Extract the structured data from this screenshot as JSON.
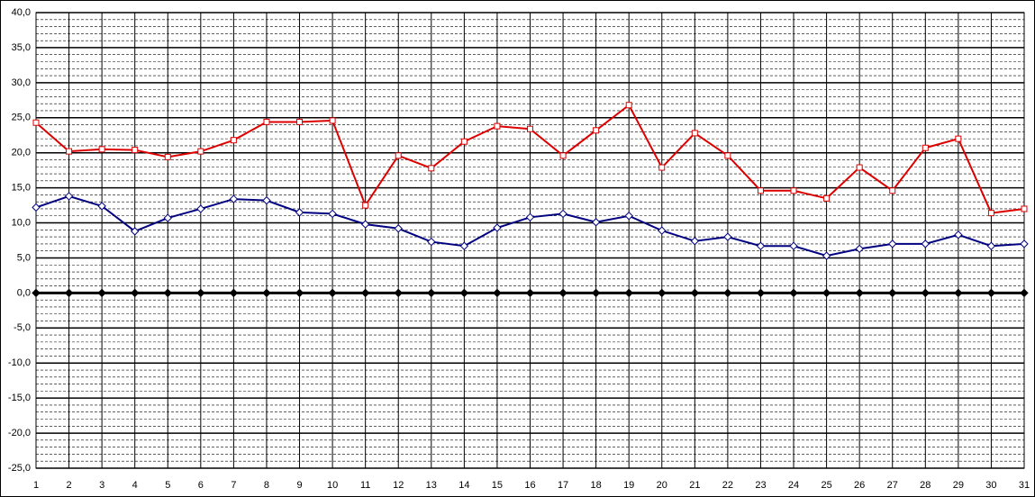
{
  "chart_data": {
    "type": "line",
    "categories": [
      "1",
      "2",
      "3",
      "4",
      "5",
      "6",
      "7",
      "8",
      "9",
      "10",
      "11",
      "12",
      "13",
      "14",
      "15",
      "16",
      "17",
      "18",
      "19",
      "20",
      "21",
      "22",
      "23",
      "24",
      "25",
      "26",
      "27",
      "28",
      "29",
      "30",
      "31"
    ],
    "series": [
      {
        "color": "#dd0000",
        "marker": "square",
        "values": [
          24.3,
          20.2,
          20.5,
          20.4,
          19.4,
          20.2,
          21.8,
          24.4,
          24.4,
          24.6,
          12.5,
          19.6,
          17.8,
          21.6,
          23.8,
          23.4,
          19.6,
          23.2,
          26.8,
          17.9,
          22.8,
          19.6,
          14.6,
          14.6,
          13.5,
          17.9,
          14.6,
          20.7,
          22.0,
          11.4,
          12.0
        ]
      },
      {
        "color": "#000080",
        "marker": "diamond",
        "values": [
          12.2,
          13.8,
          12.4,
          8.8,
          10.7,
          12.0,
          13.4,
          13.2,
          11.5,
          11.3,
          9.8,
          9.2,
          7.3,
          6.7,
          9.3,
          10.8,
          11.3,
          10.1,
          11.0,
          8.9,
          7.4,
          8.0,
          6.7,
          6.7,
          5.3,
          6.3,
          7.0,
          7.0,
          8.3,
          6.7,
          7.0
        ]
      },
      {
        "color": "#000000",
        "marker": "filled-diamond",
        "values": [
          0,
          0,
          0,
          0,
          0,
          0,
          0,
          0,
          0,
          0,
          0,
          0,
          0,
          0,
          0,
          0,
          0,
          0,
          0,
          0,
          0,
          0,
          0,
          0,
          0,
          0,
          0,
          0,
          0,
          0,
          0
        ]
      }
    ],
    "ylim": [
      -25,
      40
    ],
    "yticks": [
      {
        "value": -25,
        "label": "-25,0"
      },
      {
        "value": -20,
        "label": "-20,0"
      },
      {
        "value": -15,
        "label": "-15,0"
      },
      {
        "value": -10,
        "label": "-10,0"
      },
      {
        "value": -5,
        "label": "-5,0"
      },
      {
        "value": 0,
        "label": "0,0"
      },
      {
        "value": 5,
        "label": "5,0"
      },
      {
        "value": 10,
        "label": "10,0"
      },
      {
        "value": 15,
        "label": "15,0"
      },
      {
        "value": 20,
        "label": "20,0"
      },
      {
        "value": 25,
        "label": "25,0"
      },
      {
        "value": 30,
        "label": "30,0"
      },
      {
        "value": 35,
        "label": "35,0"
      },
      {
        "value": 40,
        "label": "40,0"
      }
    ],
    "grid": true,
    "minor_grid_step": 1
  }
}
